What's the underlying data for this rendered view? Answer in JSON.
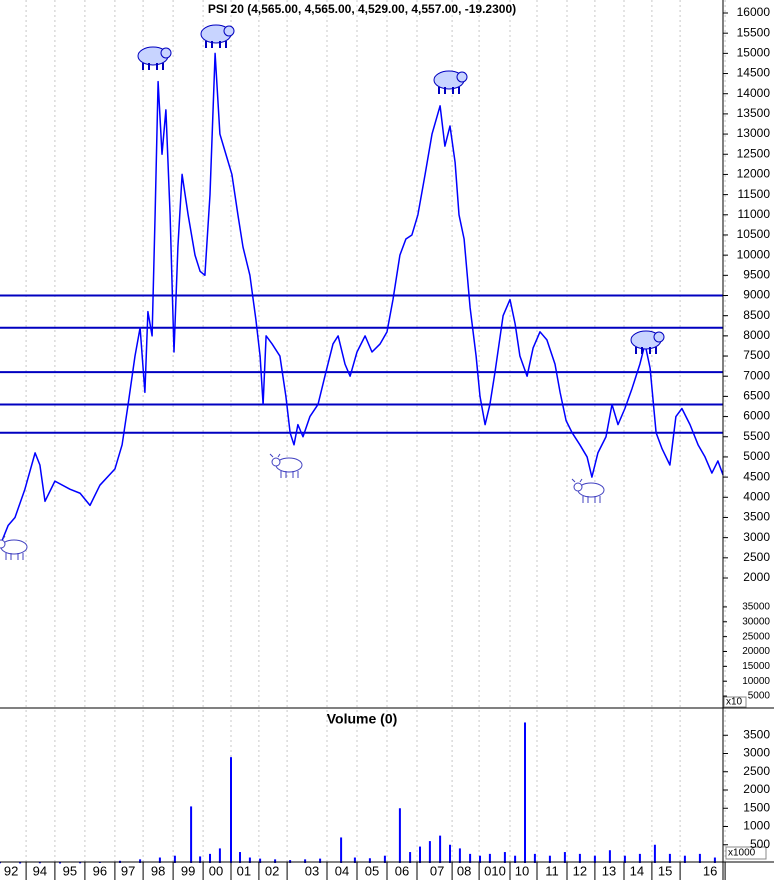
{
  "chart_data": [
    {
      "type": "line",
      "title": "PSI 20 (4,565.00, 4,565.00, 4,529.00, 4,557.00, -19.2300)",
      "x": [
        1993.0,
        1993.27,
        1993.5,
        1993.83,
        1994.17,
        1994.33,
        1994.5,
        1994.83,
        1995.33,
        1995.67,
        1996.0,
        1996.33,
        1996.83,
        1997.07,
        1997.27,
        1997.5,
        1997.67,
        1997.83,
        1997.93,
        1998.07,
        1998.17,
        1998.27,
        1998.4,
        1998.53,
        1998.67,
        1998.8,
        1998.93,
        1999.07,
        1999.27,
        1999.5,
        1999.67,
        1999.83,
        2000.0,
        2000.17,
        2000.33,
        2000.53,
        2000.73,
        2000.93,
        2001.1,
        2001.33,
        2001.53,
        2001.67,
        2001.77,
        2001.87,
        2002.07,
        2002.33,
        2002.53,
        2002.67,
        2002.8,
        2002.93,
        2003.1,
        2003.33,
        2003.6,
        2003.83,
        2004.1,
        2004.27,
        2004.5,
        2004.67,
        2004.9,
        2005.17,
        2005.4,
        2005.67,
        2005.9,
        2006.1,
        2006.33,
        2006.53,
        2006.73,
        2006.93,
        2007.17,
        2007.4,
        2007.67,
        2007.83,
        2008.0,
        2008.17,
        2008.3,
        2008.47,
        2008.67,
        2008.87,
        2009.0,
        2009.17,
        2009.33,
        2009.5,
        2009.77,
        2010.0,
        2010.17,
        2010.33,
        2010.57,
        2010.77,
        2011.0,
        2011.23,
        2011.5,
        2011.67,
        2011.87,
        2012.07,
        2012.33,
        2012.57,
        2012.73,
        2012.93,
        2013.2,
        2013.4,
        2013.6,
        2013.83,
        2014.07,
        2014.33,
        2014.5,
        2014.67,
        2014.87,
        2015.07,
        2015.33,
        2015.53,
        2015.73,
        2016.0,
        2016.27,
        2016.5,
        2016.73,
        2016.93,
        2017.1
      ],
      "values": [
        2800,
        3300,
        3500,
        4200,
        5100,
        4800,
        3900,
        4400,
        4200,
        4100,
        3800,
        4300,
        4700,
        5300,
        6300,
        7500,
        8200,
        6600,
        8600,
        8000,
        11000,
        14300,
        12500,
        13600,
        11000,
        7600,
        10200,
        12000,
        11000,
        10000,
        9600,
        9500,
        11500,
        15000,
        13000,
        12500,
        12000,
        11000,
        10200,
        9500,
        8400,
        7500,
        6300,
        8000,
        7800,
        7500,
        6500,
        5600,
        5300,
        5800,
        5500,
        6000,
        6300,
        7000,
        7800,
        8000,
        7300,
        7000,
        7600,
        8000,
        7600,
        7800,
        8100,
        8900,
        10000,
        10400,
        10500,
        11000,
        12000,
        13000,
        13700,
        12700,
        13200,
        12300,
        11000,
        10400,
        8700,
        7500,
        6500,
        5800,
        6300,
        7100,
        8500,
        8900,
        8300,
        7500,
        7000,
        7700,
        8100,
        7900,
        7300,
        6600,
        5900,
        5600,
        5300,
        5000,
        4500,
        5100,
        5500,
        6300,
        5800,
        6200,
        6700,
        7300,
        7800,
        7200,
        5600,
        5200,
        4800,
        6000,
        6200,
        5800,
        5300,
        5000,
        4600,
        4900,
        4557
      ],
      "color": "#0000ff",
      "xlim": [
        1993.0,
        2017.1
      ],
      "xticks": [
        {
          "value": 1993.37,
          "label": "92"
        },
        {
          "value": 1994.33,
          "label": "94"
        },
        {
          "value": 1995.33,
          "label": "95"
        },
        {
          "value": 1996.33,
          "label": "96"
        },
        {
          "value": 1997.27,
          "label": "97"
        },
        {
          "value": 1998.27,
          "label": "98"
        },
        {
          "value": 1999.27,
          "label": "99"
        },
        {
          "value": 2000.2,
          "label": "00"
        },
        {
          "value": 2001.13,
          "label": "01"
        },
        {
          "value": 2002.07,
          "label": "02"
        },
        {
          "value": 2003.4,
          "label": "03"
        },
        {
          "value": 2004.4,
          "label": "04"
        },
        {
          "value": 2005.4,
          "label": "05"
        },
        {
          "value": 2006.4,
          "label": "06"
        },
        {
          "value": 2007.57,
          "label": "07"
        },
        {
          "value": 2008.47,
          "label": "08"
        },
        {
          "value": 2009.5,
          "label": "010"
        },
        {
          "value": 2010.4,
          "label": "10"
        },
        {
          "value": 2011.4,
          "label": "11"
        },
        {
          "value": 2012.33,
          "label": "12"
        },
        {
          "value": 2013.3,
          "label": "13"
        },
        {
          "value": 2014.23,
          "label": "14"
        },
        {
          "value": 2015.17,
          "label": "15"
        },
        {
          "value": 2016.67,
          "label": "16"
        }
      ],
      "ylim": [
        2000,
        16000
      ],
      "yticks": [
        2000,
        2500,
        3000,
        3500,
        4000,
        4500,
        5000,
        5500,
        6000,
        6500,
        7000,
        7500,
        8000,
        8500,
        9000,
        9500,
        10000,
        10500,
        11000,
        11500,
        12000,
        12500,
        13000,
        13500,
        14000,
        14500,
        15000,
        15500,
        16000
      ],
      "y2lim": [
        2000,
        38000
      ],
      "y2ticks": [
        5000,
        10000,
        15000,
        20000,
        25000,
        30000,
        35000
      ],
      "y2_label": "x10",
      "hlines": [
        9000,
        8200,
        7100,
        6300,
        5600
      ],
      "hline_color": "#0000c0",
      "grid": true
    },
    {
      "type": "bar",
      "title": "Volume (0)",
      "x": [
        1993,
        1993.67,
        1994.33,
        1995,
        1995.67,
        1996.33,
        1997,
        1997.67,
        1998.33,
        1998.83,
        1999.37,
        1999.67,
        2000,
        2000.33,
        2000.7,
        2001,
        2001.33,
        2001.67,
        2002.17,
        2002.67,
        2003.17,
        2003.67,
        2004.37,
        2004.83,
        2005.33,
        2005.83,
        2006.33,
        2006.67,
        2007,
        2007.33,
        2007.67,
        2008,
        2008.33,
        2008.67,
        2009,
        2009.33,
        2009.83,
        2010.17,
        2010.5,
        2010.83,
        2011.33,
        2011.83,
        2012.33,
        2012.83,
        2013.33,
        2013.83,
        2014.33,
        2014.83,
        2015.33,
        2015.83,
        2016.33,
        2016.83
      ],
      "values": [
        20,
        15,
        20,
        15,
        20,
        30,
        60,
        100,
        150,
        200,
        1550,
        180,
        250,
        400,
        2900,
        300,
        150,
        120,
        100,
        80,
        100,
        120,
        700,
        150,
        130,
        200,
        1500,
        300,
        450,
        600,
        750,
        500,
        400,
        250,
        200,
        250,
        300,
        200,
        3850,
        250,
        200,
        300,
        250,
        200,
        350,
        200,
        250,
        500,
        250,
        200,
        250,
        150
      ],
      "color": "#0000ff",
      "xlim": [
        1993.0,
        2017.1
      ],
      "ylim": [
        0,
        4000
      ],
      "yticks": [
        500,
        1000,
        1500,
        2000,
        2500,
        3000,
        3500
      ],
      "y_label": "x1000"
    }
  ]
}
